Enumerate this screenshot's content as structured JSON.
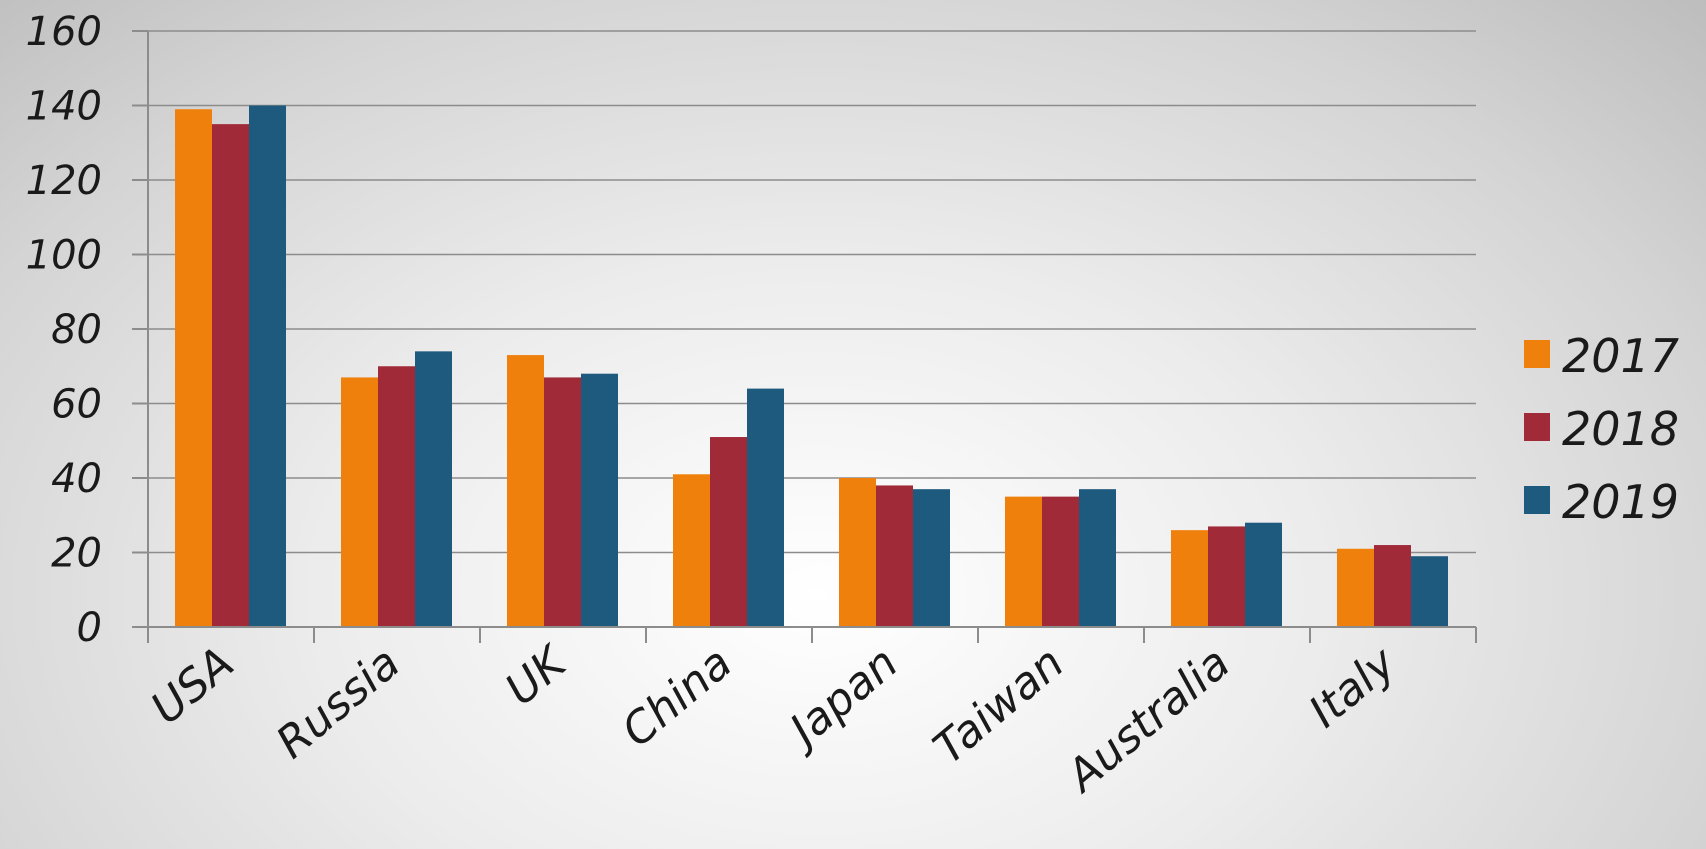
{
  "chart_data": {
    "type": "bar",
    "title": "",
    "xlabel": "",
    "ylabel": "",
    "categories": [
      "USA",
      "Russia",
      "UK",
      "China",
      "Japan",
      "Taiwan",
      "Australia",
      "Italy"
    ],
    "series": [
      {
        "name": "2017",
        "color": "#f0800c",
        "values": [
          139,
          67,
          73,
          41,
          40,
          35,
          26,
          21
        ]
      },
      {
        "name": "2018",
        "color": "#a12a39",
        "values": [
          135,
          70,
          67,
          51,
          38,
          35,
          27,
          22
        ]
      },
      {
        "name": "2019",
        "color": "#1d5a7e",
        "values": [
          140,
          74,
          68,
          64,
          37,
          37,
          28,
          19
        ]
      }
    ],
    "ylim": [
      0,
      160
    ],
    "yticks": [
      0,
      20,
      40,
      60,
      80,
      100,
      120,
      140,
      160
    ],
    "grid": true,
    "legend_position": "right"
  }
}
